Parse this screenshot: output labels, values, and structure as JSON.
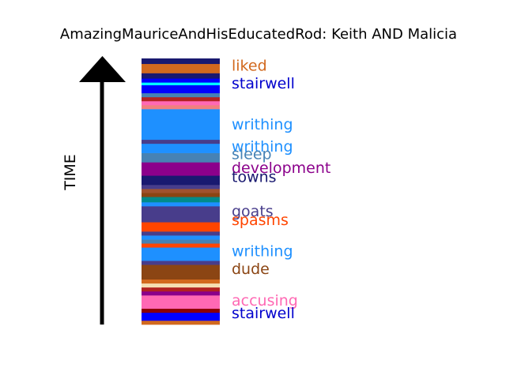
{
  "chart_data": {
    "type": "bar",
    "title": "AmazingMauriceAndHisEducatedRod: Keith AND Malicia",
    "ylabel": "TIME",
    "ylim": [
      0,
      1
    ],
    "segments": [
      {
        "start": 0.0,
        "end": 0.015,
        "color": "#d2691e"
      },
      {
        "start": 0.015,
        "end": 0.045,
        "color": "#0000ff"
      },
      {
        "start": 0.045,
        "end": 0.06,
        "color": "#8b0000"
      },
      {
        "start": 0.06,
        "end": 0.11,
        "color": "#ff69b4"
      },
      {
        "start": 0.11,
        "end": 0.125,
        "color": "#8b008b"
      },
      {
        "start": 0.125,
        "end": 0.14,
        "color": "#b22222"
      },
      {
        "start": 0.14,
        "end": 0.155,
        "color": "#f5deb3"
      },
      {
        "start": 0.155,
        "end": 0.17,
        "color": "#d2691e"
      },
      {
        "start": 0.17,
        "end": 0.225,
        "color": "#8b4513"
      },
      {
        "start": 0.225,
        "end": 0.24,
        "color": "#483d8b"
      },
      {
        "start": 0.24,
        "end": 0.29,
        "color": "#1e90ff"
      },
      {
        "start": 0.29,
        "end": 0.305,
        "color": "#ff4500"
      },
      {
        "start": 0.305,
        "end": 0.32,
        "color": "#4682b4"
      },
      {
        "start": 0.32,
        "end": 0.335,
        "color": "#1e90ff"
      },
      {
        "start": 0.335,
        "end": 0.35,
        "color": "#483d8b"
      },
      {
        "start": 0.35,
        "end": 0.385,
        "color": "#ff4500"
      },
      {
        "start": 0.385,
        "end": 0.4,
        "color": "#483d8b"
      },
      {
        "start": 0.4,
        "end": 0.445,
        "color": "#483d8b"
      },
      {
        "start": 0.445,
        "end": 0.46,
        "color": "#1e90ff"
      },
      {
        "start": 0.46,
        "end": 0.48,
        "color": "#008b8b"
      },
      {
        "start": 0.48,
        "end": 0.495,
        "color": "#8b4513"
      },
      {
        "start": 0.495,
        "end": 0.51,
        "color": "#a0522d"
      },
      {
        "start": 0.51,
        "end": 0.525,
        "color": "#483d8b"
      },
      {
        "start": 0.525,
        "end": 0.56,
        "color": "#191970"
      },
      {
        "start": 0.56,
        "end": 0.61,
        "color": "#8b008b"
      },
      {
        "start": 0.61,
        "end": 0.645,
        "color": "#4682b4"
      },
      {
        "start": 0.645,
        "end": 0.68,
        "color": "#1e90ff"
      },
      {
        "start": 0.68,
        "end": 0.695,
        "color": "#483d8b"
      },
      {
        "start": 0.695,
        "end": 0.81,
        "color": "#1e90ff"
      },
      {
        "start": 0.81,
        "end": 0.825,
        "color": "#f08080"
      },
      {
        "start": 0.825,
        "end": 0.84,
        "color": "#ff69b4"
      },
      {
        "start": 0.84,
        "end": 0.855,
        "color": "#b22222"
      },
      {
        "start": 0.855,
        "end": 0.87,
        "color": "#4682b4"
      },
      {
        "start": 0.87,
        "end": 0.9,
        "color": "#0000ff"
      },
      {
        "start": 0.9,
        "end": 0.91,
        "color": "#00ffff"
      },
      {
        "start": 0.91,
        "end": 0.925,
        "color": "#0000ff"
      },
      {
        "start": 0.925,
        "end": 0.945,
        "color": "#191970"
      },
      {
        "start": 0.945,
        "end": 0.98,
        "color": "#d2691e"
      },
      {
        "start": 0.98,
        "end": 1.0,
        "color": "#191970"
      }
    ],
    "labels": [
      {
        "text": "liked",
        "pos": 0.975,
        "color": "#d2691e"
      },
      {
        "text": "stairwell",
        "pos": 0.908,
        "color": "#0000cd"
      },
      {
        "text": "writhing",
        "pos": 0.754,
        "color": "#1e90ff"
      },
      {
        "text": "writhing",
        "pos": 0.671,
        "color": "#1e90ff"
      },
      {
        "text": "sleep",
        "pos": 0.642,
        "color": "#4682b4"
      },
      {
        "text": "development",
        "pos": 0.59,
        "color": "#8b008b"
      },
      {
        "text": "towns",
        "pos": 0.556,
        "color": "#191970"
      },
      {
        "text": "goats",
        "pos": 0.428,
        "color": "#483d8b"
      },
      {
        "text": "spasms",
        "pos": 0.395,
        "color": "#ff4500"
      },
      {
        "text": "writhing",
        "pos": 0.277,
        "color": "#1e90ff"
      },
      {
        "text": "dude",
        "pos": 0.21,
        "color": "#8b4513"
      },
      {
        "text": "accusing",
        "pos": 0.092,
        "color": "#ff69b4"
      },
      {
        "text": "stairwell",
        "pos": 0.045,
        "color": "#0000cd"
      }
    ]
  }
}
